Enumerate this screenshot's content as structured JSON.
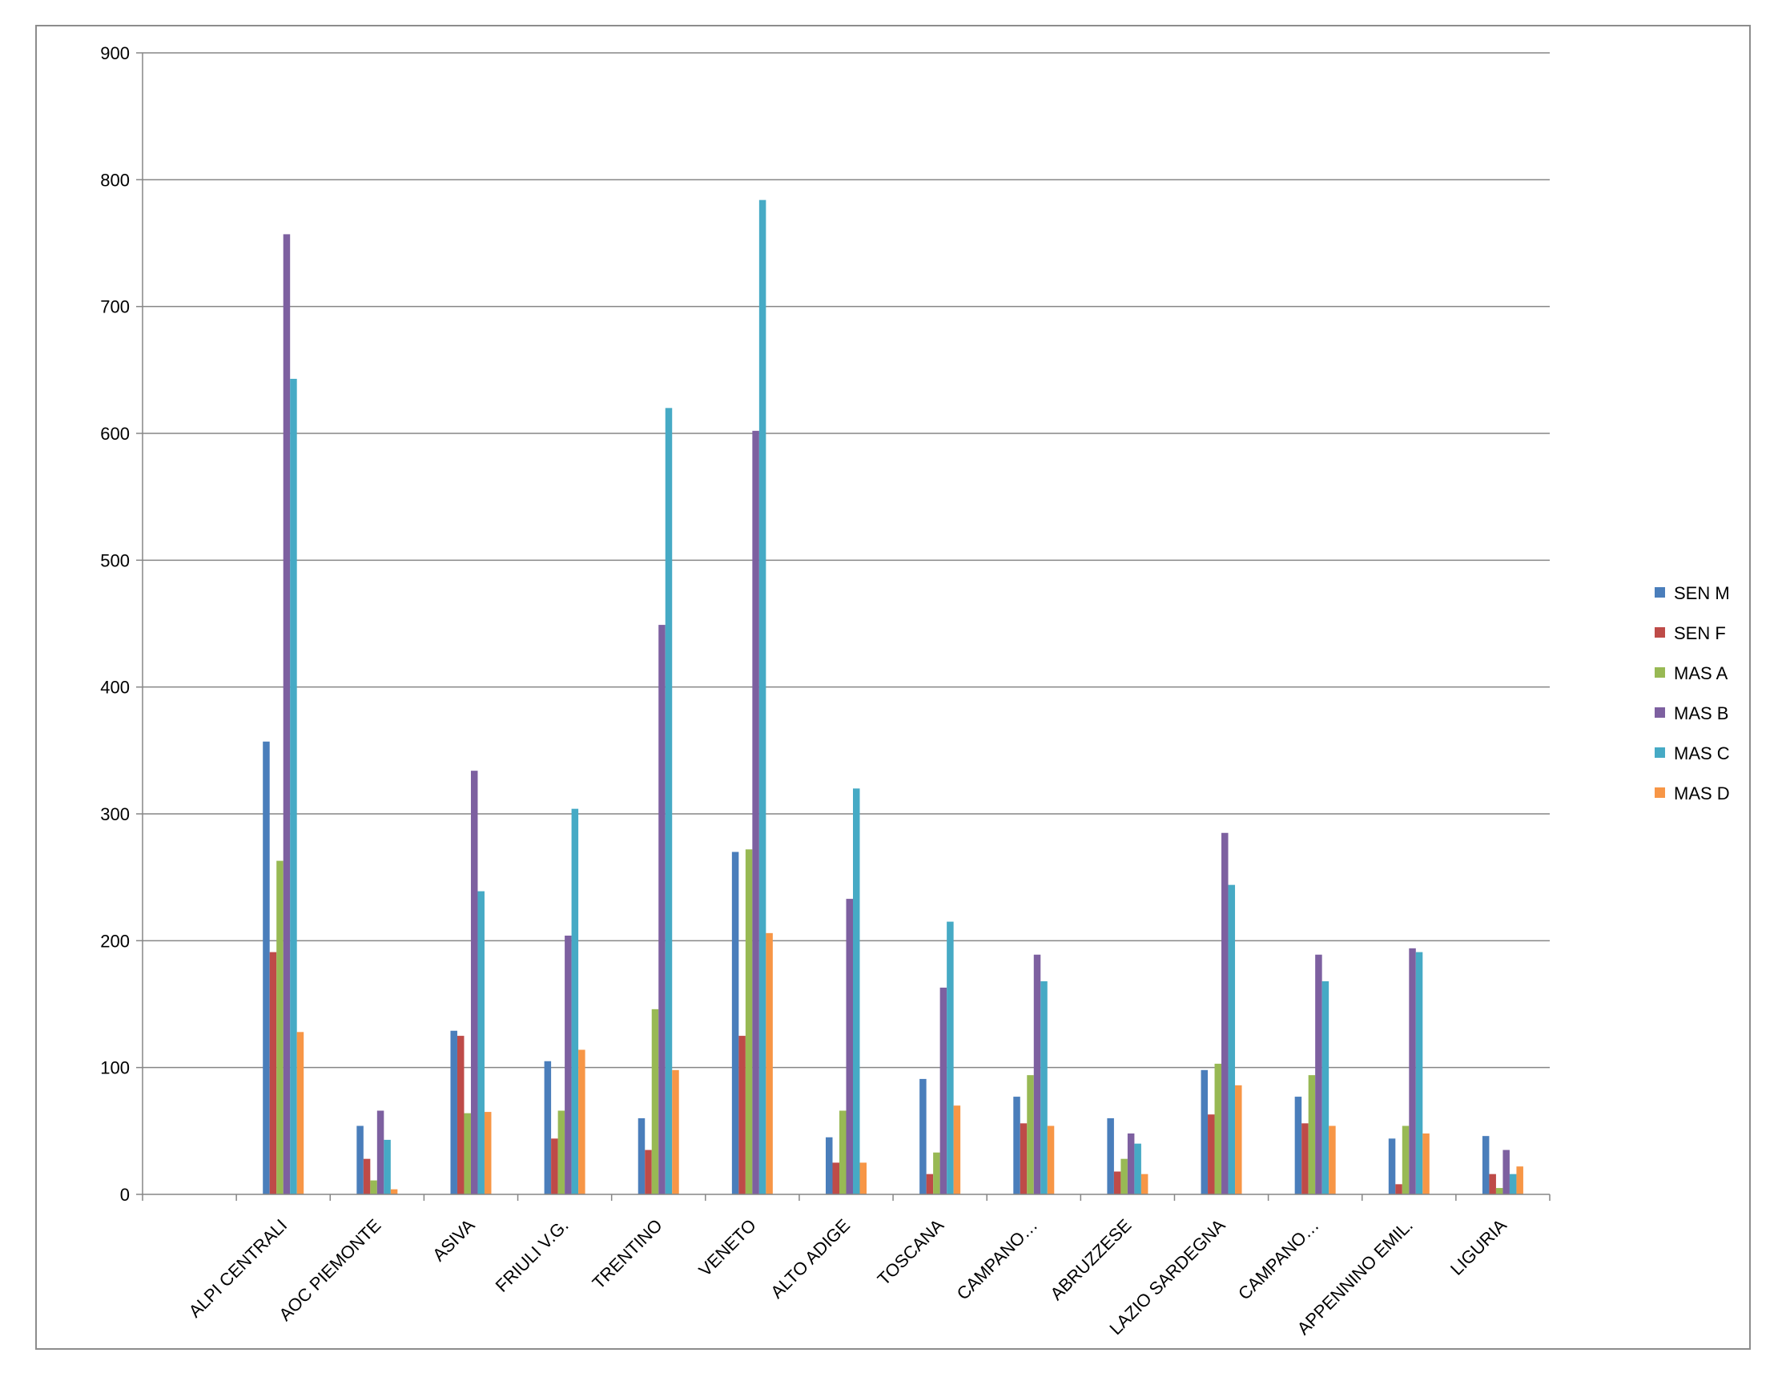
{
  "chart_data": {
    "type": "bar",
    "title": "",
    "xlabel": "",
    "ylabel": "",
    "ylim": [
      0,
      900
    ],
    "yticks": [
      0,
      100,
      200,
      300,
      400,
      500,
      600,
      700,
      800,
      900
    ],
    "grid": true,
    "legend_position": "right",
    "categories": [
      "",
      "ALPI CENTRALI",
      "AOC PIEMONTE",
      "ASIVA",
      "FRIULI V.G.",
      "TRENTINO",
      "VENETO",
      "ALTO ADIGE",
      "TOSCANA",
      "CAMPANO…",
      "ABRUZZESE",
      "LAZIO SARDEGNA",
      "CAMPANO…",
      "APPENNINO EMIL.",
      "LIGURIA"
    ],
    "series": [
      {
        "name": "SEN M",
        "color": "#4a7ebb",
        "values": [
          null,
          357,
          54,
          129,
          105,
          60,
          270,
          45,
          91,
          77,
          60,
          98,
          77,
          44,
          46
        ]
      },
      {
        "name": "SEN F",
        "color": "#be4b48",
        "values": [
          null,
          191,
          28,
          125,
          44,
          35,
          125,
          25,
          16,
          56,
          18,
          63,
          56,
          8,
          16
        ]
      },
      {
        "name": "MAS A",
        "color": "#98b954",
        "values": [
          null,
          263,
          11,
          64,
          66,
          146,
          272,
          66,
          33,
          94,
          28,
          103,
          94,
          54,
          5
        ]
      },
      {
        "name": "MAS B",
        "color": "#7d60a0",
        "values": [
          null,
          757,
          66,
          334,
          204,
          449,
          602,
          233,
          163,
          189,
          48,
          285,
          189,
          194,
          35
        ]
      },
      {
        "name": "MAS C",
        "color": "#46aac5",
        "values": [
          null,
          643,
          43,
          239,
          304,
          620,
          784,
          320,
          215,
          168,
          40,
          244,
          168,
          191,
          16
        ]
      },
      {
        "name": "MAS D",
        "color": "#f79646",
        "values": [
          null,
          128,
          4,
          65,
          114,
          98,
          206,
          25,
          70,
          54,
          16,
          86,
          54,
          48,
          22
        ]
      }
    ]
  }
}
